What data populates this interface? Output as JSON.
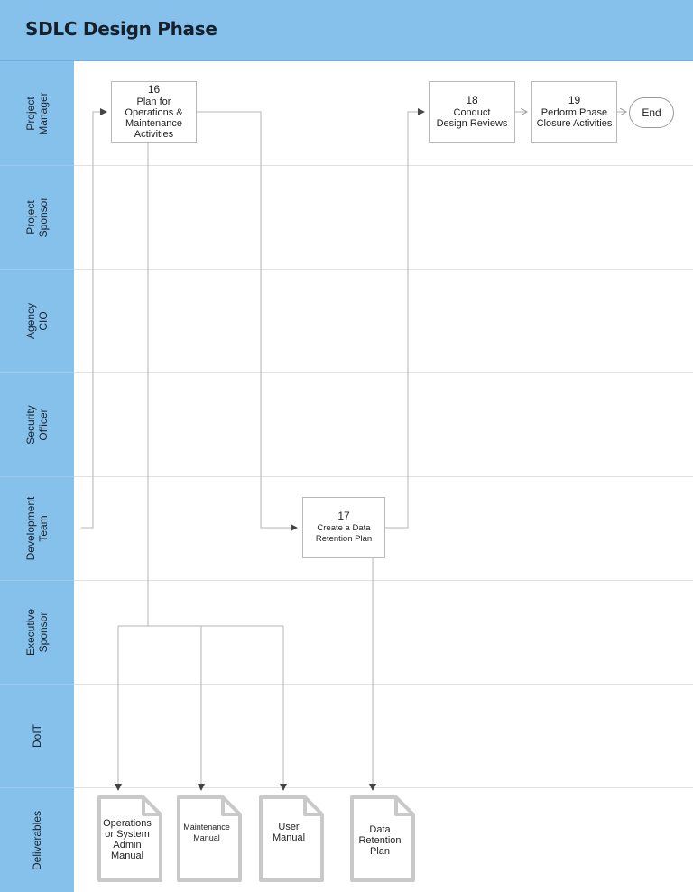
{
  "title": "SDLC Design Phase",
  "lanes": [
    {
      "label": "Project\nManager"
    },
    {
      "label": "Project\nSponsor"
    },
    {
      "label": "Agency\nCIO"
    },
    {
      "label": "Security\nOfficer"
    },
    {
      "label": "Development\nTeam"
    },
    {
      "label": "Executive\nSponsor"
    },
    {
      "label": "DoIT"
    },
    {
      "label": "Deliverables"
    }
  ],
  "steps": {
    "s16": {
      "num": "16",
      "title": "Plan for\nOperations &\nMaintenance\nActivities"
    },
    "s17": {
      "num": "17",
      "title": "Create a Data\nRetention Plan"
    },
    "s18": {
      "num": "18",
      "title": "Conduct\nDesign Reviews"
    },
    "s19": {
      "num": "19",
      "title": "Perform Phase\nClosure Activities"
    }
  },
  "end_label": "End",
  "deliverables": [
    {
      "label": "Operations\nor System\nAdmin\nManual"
    },
    {
      "label": "Maintenance\nManual"
    },
    {
      "label": "User\nManual"
    },
    {
      "label": "Data\nRetention\nPlan"
    }
  ],
  "colors": {
    "header": "#86c1ec",
    "lane_border": "#e2e2e2",
    "line": "#b5b5b5",
    "arrow": "#444444"
  }
}
